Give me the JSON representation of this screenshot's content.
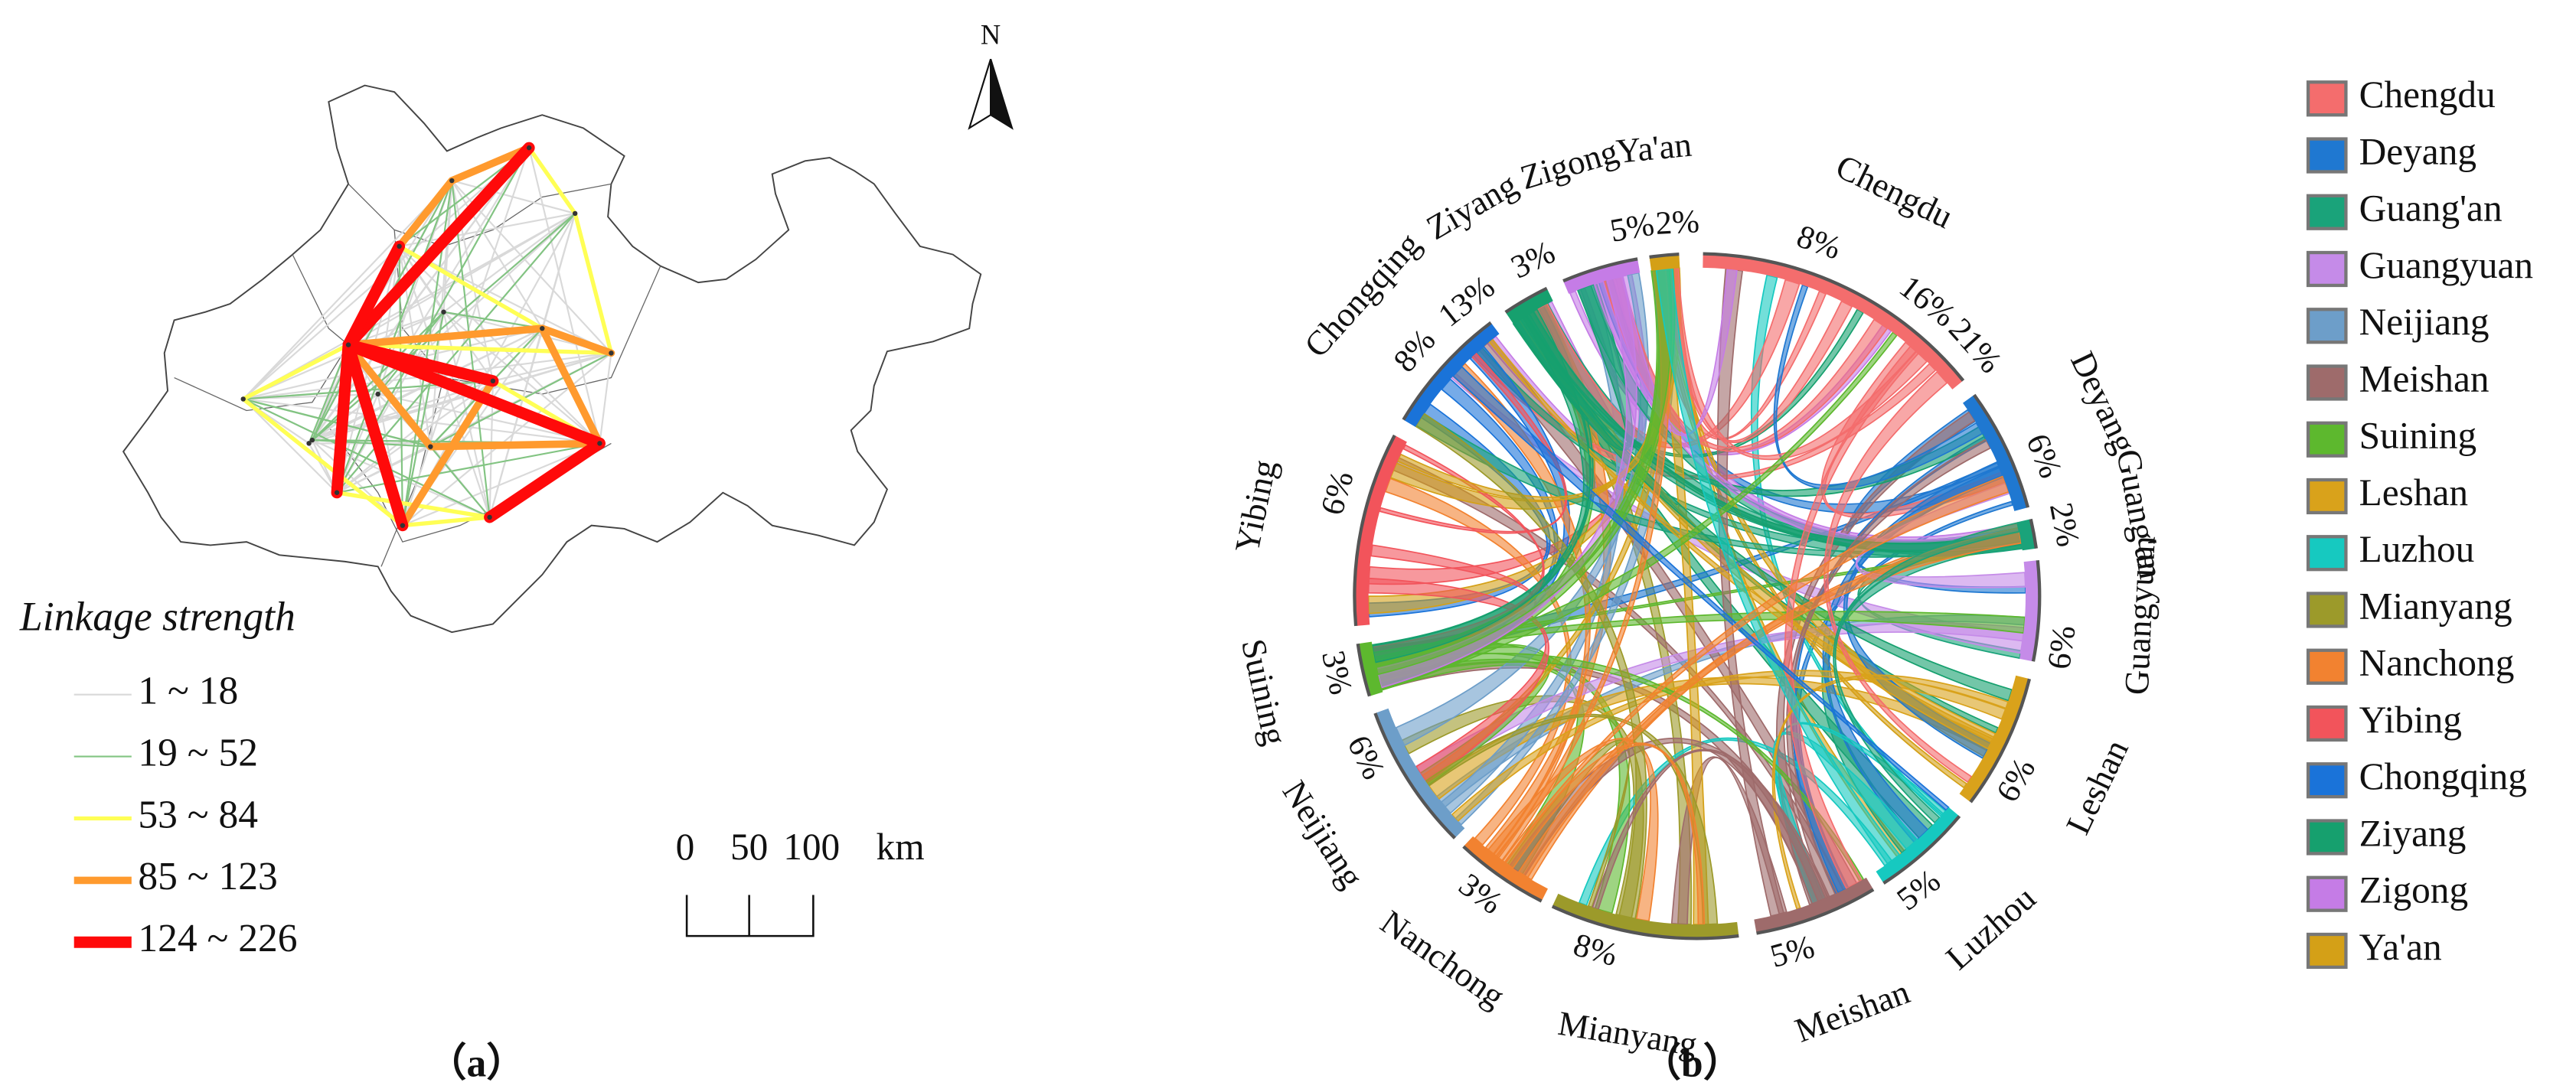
{
  "map": {
    "legend_title": "Linkage strength",
    "north": "N",
    "classes": [
      {
        "label": "1 ~ 18",
        "color": "#d9d9d9"
      },
      {
        "label": "19 ~ 52",
        "color": "#82c482"
      },
      {
        "label": "53 ~ 84",
        "color": "#ffff55"
      },
      {
        "label": "85 ~ 123",
        "color": "#ff9a2e"
      },
      {
        "label": "124 ~ 226",
        "color": "#ff0a0a"
      }
    ],
    "scale_labels": [
      "0",
      "50",
      "100",
      "km"
    ],
    "caption": "（a）"
  },
  "chord": {
    "caption": "（b）",
    "segments": [
      {
        "name": "Chengdu",
        "color": "#f46d6d",
        "labels": [
          "8%",
          "16%",
          "21%"
        ]
      },
      {
        "name": "Deyang",
        "color": "#1f78d1",
        "labels": [
          "6%"
        ]
      },
      {
        "name": "Guang'an",
        "color": "#1aa37a",
        "labels": [
          "2%"
        ]
      },
      {
        "name": "Guangyuan",
        "color": "#c58be8",
        "labels": [
          "6%"
        ]
      },
      {
        "name": "Leshan",
        "color": "#d9a21b",
        "labels": [
          "6%"
        ]
      },
      {
        "name": "Luzhou",
        "color": "#16c9c0",
        "labels": [
          "5%"
        ]
      },
      {
        "name": "Meishan",
        "color": "#9e6b6b",
        "labels": [
          "5%"
        ]
      },
      {
        "name": "Mianyang",
        "color": "#9c9a2a",
        "labels": [
          "8%"
        ]
      },
      {
        "name": "Nanchong",
        "color": "#f28230",
        "labels": [
          "3%"
        ]
      },
      {
        "name": "Neijiang",
        "color": "#6d9ec9",
        "labels": [
          "6%"
        ]
      },
      {
        "name": "Suining",
        "color": "#5db82e",
        "labels": [
          "3%"
        ]
      },
      {
        "name": "Yibing",
        "color": "#f2545b",
        "labels": [
          "6%"
        ]
      },
      {
        "name": "Chongqing",
        "color": "#1a73d9",
        "labels": [
          "8%",
          "13%"
        ]
      },
      {
        "name": "Ziyang",
        "color": "#16a06e",
        "labels": [
          "3%"
        ]
      },
      {
        "name": "Zigong",
        "color": "#c57ce6",
        "labels": [
          "5%"
        ]
      },
      {
        "name": "Ya'an",
        "color": "#d4a017",
        "labels": [
          "2%"
        ]
      }
    ],
    "legend": [
      {
        "name": "Chengdu",
        "color": "#f46d6d"
      },
      {
        "name": "Deyang",
        "color": "#1f78d1"
      },
      {
        "name": "Guang'an",
        "color": "#1aa37a"
      },
      {
        "name": "Guangyuan",
        "color": "#c58be8"
      },
      {
        "name": "Neijiang",
        "color": "#6d9ec9"
      },
      {
        "name": "Meishan",
        "color": "#9e6b6b"
      },
      {
        "name": "Suining",
        "color": "#5db82e"
      },
      {
        "name": "Leshan",
        "color": "#d9a21b"
      },
      {
        "name": "Luzhou",
        "color": "#16c9c0"
      },
      {
        "name": "Mianyang",
        "color": "#9c9a2a"
      },
      {
        "name": "Nanchong",
        "color": "#f28230"
      },
      {
        "name": "Yibing",
        "color": "#f2545b"
      },
      {
        "name": "Chongqing",
        "color": "#1a73d9"
      },
      {
        "name": "Ziyang",
        "color": "#16a06e"
      },
      {
        "name": "Zigong",
        "color": "#c57ce6"
      },
      {
        "name": "Ya'an",
        "color": "#d4a017"
      }
    ]
  }
}
